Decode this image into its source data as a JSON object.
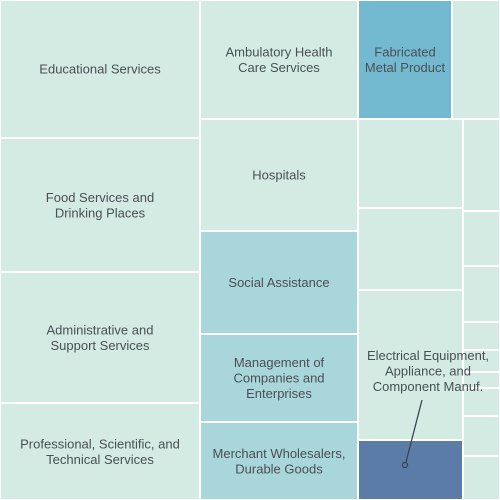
{
  "chart_data": {
    "type": "treemap",
    "colors": {
      "light": "#d4ebe3",
      "medium": "#a9d6da",
      "teal": "#73bad0",
      "dark": "#5b7ca6"
    },
    "tiles": [
      {
        "name": "Educational Services",
        "lines": [
          "Educational Services"
        ],
        "shade": "light"
      },
      {
        "name": "Food Services and Drinking Places",
        "lines": [
          "Food Services and",
          "Drinking Places"
        ],
        "shade": "light"
      },
      {
        "name": "Administrative and Support Services",
        "lines": [
          "Administrative and",
          "Support Services"
        ],
        "shade": "light"
      },
      {
        "name": "Professional, Scientific, and Technical Services",
        "lines": [
          "Professional, Scientific, and",
          "Technical Services"
        ],
        "shade": "light"
      },
      {
        "name": "Ambulatory Health Care Services",
        "lines": [
          "Ambulatory Health",
          "Care Services"
        ],
        "shade": "light"
      },
      {
        "name": "Hospitals",
        "lines": [
          "Hospitals"
        ],
        "shade": "light"
      },
      {
        "name": "Social Assistance",
        "lines": [
          "Social Assistance"
        ],
        "shade": "medium"
      },
      {
        "name": "Management of Companies and Enterprises",
        "lines": [
          "Management of",
          "Companies and",
          "Enterprises"
        ],
        "shade": "medium"
      },
      {
        "name": "Merchant Wholesalers, Durable Goods",
        "lines": [
          "Merchant Wholesalers,",
          "Durable Goods"
        ],
        "shade": "medium"
      },
      {
        "name": "Fabricated Metal Product",
        "lines": [
          "Fabricated",
          "Metal Product"
        ],
        "shade": "teal"
      },
      {
        "name": "",
        "lines": [],
        "shade": "light"
      },
      {
        "name": "",
        "lines": [],
        "shade": "light"
      },
      {
        "name": "",
        "lines": [],
        "shade": "light"
      },
      {
        "name": "",
        "lines": [],
        "shade": "light"
      },
      {
        "name": "",
        "lines": [],
        "shade": "light"
      },
      {
        "name": "",
        "lines": [],
        "shade": "light"
      },
      {
        "name": "",
        "lines": [],
        "shade": "light"
      },
      {
        "name": "",
        "lines": [],
        "shade": "light"
      },
      {
        "name": "",
        "lines": [],
        "shade": "light"
      },
      {
        "name": "",
        "lines": [],
        "shade": "light"
      },
      {
        "name": "",
        "lines": [],
        "shade": "light"
      },
      {
        "name": "",
        "lines": [],
        "shade": "light"
      },
      {
        "name": "",
        "lines": [],
        "shade": "light"
      },
      {
        "name": "Electrical Equipment, Appliance, and Component Manuf.",
        "lines": [],
        "shade": "dark"
      }
    ],
    "annotation": {
      "target": "Electrical Equipment, Appliance, and Component Manuf.",
      "lines": [
        "Electrical Equipment,",
        "Appliance, and",
        "Component Manuf."
      ]
    }
  }
}
